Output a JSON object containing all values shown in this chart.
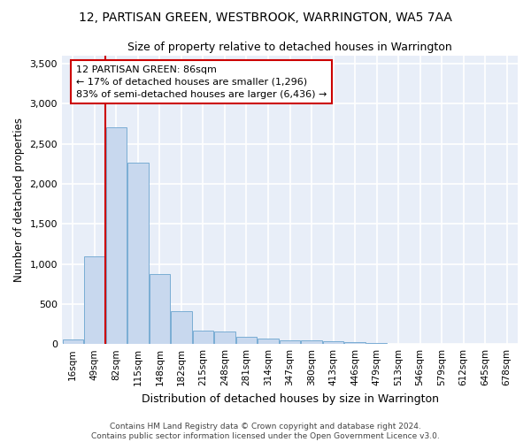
{
  "title": "12, PARTISAN GREEN, WESTBROOK, WARRINGTON, WA5 7AA",
  "subtitle": "Size of property relative to detached houses in Warrington",
  "xlabel": "Distribution of detached houses by size in Warrington",
  "ylabel": "Number of detached properties",
  "footer_line1": "Contains HM Land Registry data © Crown copyright and database right 2024.",
  "footer_line2": "Contains public sector information licensed under the Open Government Licence v3.0.",
  "bar_labels": [
    "16sqm",
    "49sqm",
    "82sqm",
    "115sqm",
    "148sqm",
    "182sqm",
    "215sqm",
    "248sqm",
    "281sqm",
    "314sqm",
    "347sqm",
    "380sqm",
    "413sqm",
    "446sqm",
    "479sqm",
    "513sqm",
    "546sqm",
    "579sqm",
    "612sqm",
    "645sqm",
    "678sqm"
  ],
  "bar_values": [
    55,
    1090,
    2710,
    2270,
    870,
    415,
    170,
    160,
    90,
    65,
    50,
    45,
    30,
    20,
    10,
    5,
    5,
    3,
    2,
    2,
    2
  ],
  "bar_color": "#c8d8ee",
  "bar_edge_color": "#7aadd4",
  "bg_color": "#e8eef8",
  "grid_color": "#ffffff",
  "ylim": [
    0,
    3600
  ],
  "yticks": [
    0,
    500,
    1000,
    1500,
    2000,
    2500,
    3000,
    3500
  ],
  "annotation_text": "12 PARTISAN GREEN: 86sqm\n← 17% of detached houses are smaller (1,296)\n83% of semi-detached houses are larger (6,436) →",
  "vline_x_bar": 2,
  "annotation_box_color": "#ffffff",
  "annotation_box_edge_color": "#cc0000",
  "vline_color": "#cc0000"
}
